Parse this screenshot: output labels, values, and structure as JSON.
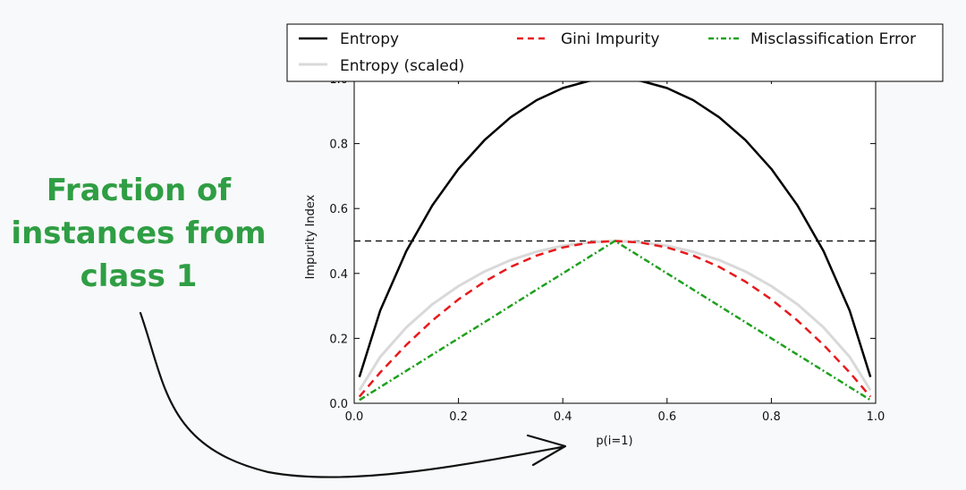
{
  "chart_data": {
    "type": "line",
    "xlabel": "p(i=1)",
    "ylabel": "Impurity Index",
    "xlim": [
      0.0,
      1.0
    ],
    "ylim": [
      0.0,
      1.0
    ],
    "xticks": [
      "0.0",
      "0.2",
      "0.4",
      "0.6",
      "0.8",
      "1.0"
    ],
    "yticks": [
      "0.0",
      "0.2",
      "0.4",
      "0.6",
      "0.8",
      "1.0"
    ],
    "grid": false,
    "legend_position": "top, above plot",
    "reference_lines": [
      1.0,
      0.5
    ],
    "x": [
      0.01,
      0.05,
      0.1,
      0.15,
      0.2,
      0.25,
      0.3,
      0.35,
      0.4,
      0.45,
      0.5,
      0.55,
      0.6,
      0.65,
      0.7,
      0.75,
      0.8,
      0.85,
      0.9,
      0.95,
      0.99
    ],
    "series": [
      {
        "name": "Entropy",
        "color": "#000000",
        "style": "solid",
        "values": [
          0.081,
          0.286,
          0.469,
          0.61,
          0.722,
          0.811,
          0.881,
          0.934,
          0.971,
          0.993,
          1.0,
          0.993,
          0.971,
          0.934,
          0.881,
          0.811,
          0.722,
          0.61,
          0.469,
          0.286,
          0.081
        ]
      },
      {
        "name": "Entropy (scaled)",
        "color": "#d9d9d9",
        "style": "solid",
        "values": [
          0.04,
          0.143,
          0.234,
          0.305,
          0.361,
          0.406,
          0.441,
          0.467,
          0.485,
          0.496,
          0.5,
          0.496,
          0.485,
          0.467,
          0.441,
          0.406,
          0.361,
          0.305,
          0.234,
          0.143,
          0.04
        ]
      },
      {
        "name": "Gini Impurity",
        "color": "#e8191c",
        "style": "dashed",
        "values": [
          0.02,
          0.095,
          0.18,
          0.255,
          0.32,
          0.375,
          0.42,
          0.455,
          0.48,
          0.495,
          0.5,
          0.495,
          0.48,
          0.455,
          0.42,
          0.375,
          0.32,
          0.255,
          0.18,
          0.095,
          0.02
        ]
      },
      {
        "name": "Misclassification Error",
        "color": "#1ea01e",
        "style": "dashdot",
        "values": [
          0.01,
          0.05,
          0.1,
          0.15,
          0.2,
          0.25,
          0.3,
          0.35,
          0.4,
          0.45,
          0.5,
          0.45,
          0.4,
          0.35,
          0.3,
          0.25,
          0.2,
          0.15,
          0.1,
          0.05,
          0.01
        ]
      }
    ],
    "annotation": {
      "lines": [
        "Fraction of",
        "instances from",
        "class 1"
      ],
      "color": "#2f9e44"
    }
  }
}
